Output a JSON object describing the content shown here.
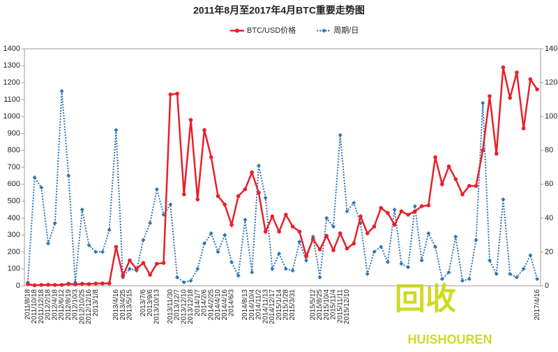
{
  "chart_data": {
    "type": "line",
    "title": "2011年8月至2017年4月BTC重要走势图",
    "categories": [
      "2011/8/18",
      "2011/10/18",
      "2011/12/18",
      "2012/2/18",
      "2012/4/18",
      "2012/6/12",
      "2012/8/19",
      "2012/10/3",
      "2012/10/25",
      "2012/12/16",
      "2013/1/8",
      null,
      null,
      "2013/4/16",
      "2013/4/25",
      "2013/5/15",
      null,
      "2013/7/6",
      "2013/9/6",
      "2013/10/13",
      null,
      "2013/11/30",
      "2013/12/7",
      "2013/12/10",
      "2013/12/18",
      "2014/1/7",
      "2014/2/6",
      "2014/2/25",
      "2014/4/10",
      "2014/4/16",
      "2014/6/3",
      null,
      "2014/8/13",
      "2014/10/4",
      "2014/11/2",
      "2014/11/13",
      "2014/12/17",
      "2015/1/14",
      "2015/1/28",
      "2015/3/31",
      null,
      null,
      "2015/5/12",
      "2015/8/25",
      "2015/10/4",
      "2015/11/4",
      "2015/11/11",
      "2015/12/10",
      null,
      null,
      null,
      null,
      null,
      null,
      null,
      null,
      null,
      null,
      null,
      null,
      null,
      null,
      null,
      null,
      null,
      null,
      null,
      null,
      null,
      null,
      null,
      null,
      null,
      null,
      null,
      "2017/4/16"
    ],
    "series": [
      {
        "name": "BTC/USD价格",
        "color": "#e8202a",
        "axis": "y",
        "values": [
          10,
          3,
          5,
          6,
          5,
          5,
          12,
          8,
          12,
          10,
          13,
          14,
          14,
          230,
          60,
          150,
          100,
          135,
          65,
          130,
          135,
          1130,
          1135,
          540,
          980,
          510,
          920,
          760,
          530,
          480,
          360,
          530,
          570,
          670,
          550,
          320,
          410,
          320,
          420,
          350,
          320,
          175,
          275,
          215,
          295,
          210,
          310,
          220,
          250,
          410,
          310,
          350,
          460,
          430,
          360,
          440,
          420,
          440,
          470,
          475,
          760,
          600,
          705,
          630,
          540,
          590,
          590,
          800,
          1120,
          780,
          1290,
          1110,
          1260,
          930,
          1220,
          1160
        ]
      },
      {
        "name": "周期/日",
        "color": "#2e75b6",
        "axis": "y2",
        "values": [
          2,
          64,
          58,
          25,
          37,
          115,
          65,
          2,
          45,
          24,
          20,
          20,
          33,
          92,
          5,
          10,
          9,
          27,
          37,
          57,
          42,
          48,
          5,
          2,
          3,
          10,
          25,
          31,
          20,
          30,
          14,
          6,
          39,
          8,
          71,
          52,
          10,
          19,
          10,
          9,
          26,
          15,
          29,
          5,
          40,
          35,
          89,
          44,
          49,
          37,
          7,
          20,
          23,
          14,
          45,
          13,
          11,
          47,
          15,
          31,
          23,
          4,
          8,
          29,
          3,
          4,
          27,
          108,
          15,
          7,
          51,
          7,
          5,
          10,
          18,
          4
        ]
      }
    ],
    "ylim": [
      0,
      1400
    ],
    "yticks": [
      0,
      100,
      200,
      300,
      400,
      500,
      600,
      700,
      800,
      900,
      1000,
      1100,
      1200,
      1300,
      1400
    ],
    "y2lim": [
      0,
      140
    ],
    "y2ticks": [
      0,
      20,
      40,
      60,
      80,
      100,
      120,
      140
    ],
    "watermark": [
      "回收",
      "HUISHOUREN"
    ]
  }
}
